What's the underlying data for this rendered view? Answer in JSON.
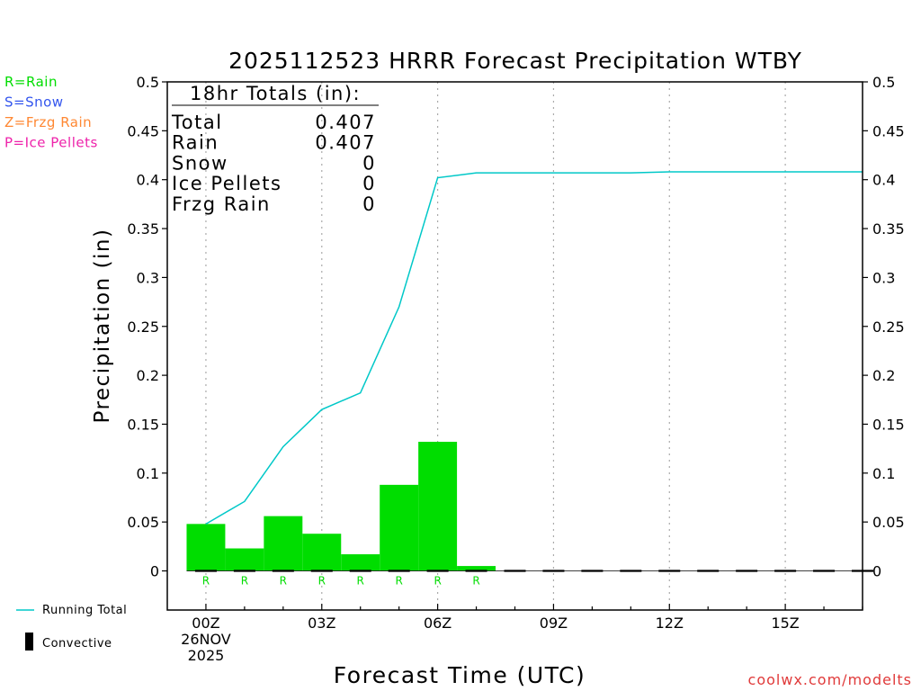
{
  "title": "2025112523 HRRR Forecast Precipitation WTBY",
  "ylabel": "Precipitation (in)",
  "xlabel": "Forecast Time (UTC)",
  "credit": "coolwx.com/modelts",
  "colors": {
    "rain": "#00dd00",
    "snow": "#3355ee",
    "frzg_rain": "#ff8833",
    "ice_pellets": "#ee22aa",
    "running_total": "#00c8c8",
    "convective": "#000000",
    "credit": "#e03a3a"
  },
  "ptype_legend": [
    {
      "label": "R=Rain",
      "color": "#00dd00"
    },
    {
      "label": "S=Snow",
      "color": "#3355ee"
    },
    {
      "label": "Z=Frzg Rain",
      "color": "#ff8833"
    },
    {
      "label": "P=Ice Pellets",
      "color": "#ee22aa"
    }
  ],
  "totals": {
    "heading": "18hr Totals (in):",
    "rows": [
      {
        "label": "Total",
        "value": "0.407"
      },
      {
        "label": "Rain",
        "value": "0.407"
      },
      {
        "label": "Snow",
        "value": "0"
      },
      {
        "label": "Ice Pellets",
        "value": "0"
      },
      {
        "label": "Frzg Rain",
        "value": "0"
      }
    ]
  },
  "bottom_legend": {
    "running_total": "Running Total",
    "convective": "Convective"
  },
  "chart_data": {
    "type": "bar",
    "title": "2025112523 HRRR Forecast Precipitation WTBY",
    "xlabel": "Forecast Time (UTC)",
    "ylabel": "Precipitation (in)",
    "ylim": [
      -0.04,
      0.5
    ],
    "xlim": [
      -1,
      17
    ],
    "yticks": [
      0,
      0.05,
      0.1,
      0.15,
      0.2,
      0.25,
      0.3,
      0.35,
      0.4,
      0.45,
      0.5
    ],
    "ytick_labels": [
      "0",
      "0.05",
      "0.1",
      "0.15",
      "0.2",
      "0.25",
      "0.3",
      "0.35",
      "0.4",
      "0.45",
      "0.5"
    ],
    "xticks": [
      {
        "hour": 0,
        "lines": [
          "00Z",
          "26NOV",
          "2025"
        ]
      },
      {
        "hour": 3,
        "lines": [
          "03Z"
        ]
      },
      {
        "hour": 6,
        "lines": [
          "06Z"
        ]
      },
      {
        "hour": 9,
        "lines": [
          "09Z"
        ]
      },
      {
        "hour": 12,
        "lines": [
          "12Z"
        ]
      },
      {
        "hour": 15,
        "lines": [
          "15Z"
        ]
      }
    ],
    "grid": "vertical dotted",
    "series": [
      {
        "name": "Rain",
        "kind": "bar",
        "hours": [
          0,
          1,
          2,
          3,
          4,
          5,
          6,
          7
        ],
        "values": [
          0.048,
          0.023,
          0.056,
          0.038,
          0.017,
          0.088,
          0.132,
          0.005
        ],
        "ptype": [
          "R",
          "R",
          "R",
          "R",
          "R",
          "R",
          "R",
          "R"
        ]
      },
      {
        "name": "Running Total",
        "kind": "line",
        "hours": [
          0,
          1,
          2,
          3,
          4,
          5,
          6,
          7,
          8,
          9,
          10,
          11,
          12,
          13,
          14,
          15,
          16,
          17
        ],
        "values": [
          0.048,
          0.071,
          0.127,
          0.165,
          0.182,
          0.27,
          0.402,
          0.407,
          0.407,
          0.407,
          0.407,
          0.407,
          0.408,
          0.408,
          0.408,
          0.408,
          0.408,
          0.408
        ]
      },
      {
        "name": "Convective",
        "kind": "bar",
        "hours": [
          0,
          1,
          2,
          3,
          4,
          5,
          6,
          7,
          8,
          9,
          10,
          11,
          12,
          13,
          14,
          15,
          16,
          17
        ],
        "values": [
          0,
          0,
          0,
          0,
          0,
          0,
          0,
          0,
          0,
          0,
          0,
          0,
          0,
          0,
          0,
          0,
          0,
          0
        ]
      }
    ]
  }
}
